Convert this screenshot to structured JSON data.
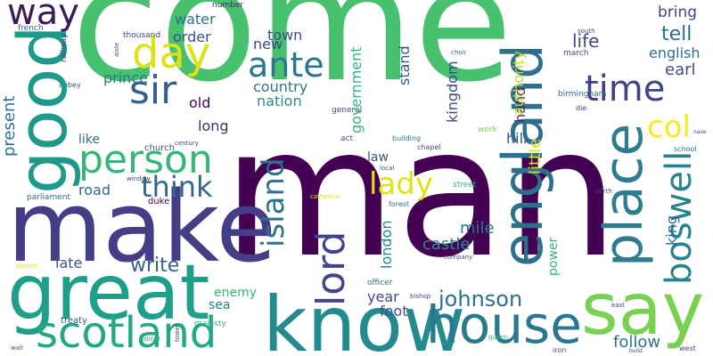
{
  "words": [
    {
      "text": "come",
      "color": "#47c16e"
    },
    {
      "text": "man",
      "color": "#440154"
    },
    {
      "text": "make",
      "color": "#433e85"
    },
    {
      "text": "great",
      "color": "#1f9e89"
    },
    {
      "text": "know",
      "color": "#238a8d"
    },
    {
      "text": "house",
      "color": "#2a788e"
    },
    {
      "text": "say",
      "color": "#7ad151"
    },
    {
      "text": "scotland",
      "color": "#22a884"
    },
    {
      "text": "good",
      "color": "#1f9a8a"
    },
    {
      "text": "way",
      "color": "#3b1c5a"
    },
    {
      "text": "day",
      "color": "#dde318"
    },
    {
      "text": "sir",
      "color": "#355f8d"
    },
    {
      "text": "ante",
      "color": "#2a768e"
    },
    {
      "text": "time",
      "color": "#404387"
    },
    {
      "text": "person",
      "color": "#35b779"
    },
    {
      "text": "think",
      "color": "#31688e"
    },
    {
      "text": "england",
      "color": "#2d708e"
    },
    {
      "text": "place",
      "color": "#2c7e8e"
    },
    {
      "text": "boswell",
      "color": "#25838e"
    },
    {
      "text": "lord",
      "color": "#414487"
    },
    {
      "text": "lady",
      "color": "#dde318"
    },
    {
      "text": "island",
      "color": "#2c738e"
    },
    {
      "text": "col",
      "color": "#fde725"
    },
    {
      "text": "johnson",
      "color": "#2d718e"
    },
    {
      "text": "write",
      "color": "#34608d"
    },
    {
      "text": "life",
      "color": "#3e4a89"
    },
    {
      "text": "tell",
      "color": "#2d708e"
    },
    {
      "text": "bring",
      "color": "#3f4788"
    },
    {
      "text": "english",
      "color": "#2f6c8e"
    },
    {
      "text": "earl",
      "color": "#3c4f8a"
    },
    {
      "text": "new",
      "color": "#3f4889"
    },
    {
      "text": "town",
      "color": "#3c508b"
    },
    {
      "text": "country",
      "color": "#2a788e"
    },
    {
      "text": "nation",
      "color": "#21918c"
    },
    {
      "text": "prince",
      "color": "#2a788e"
    },
    {
      "text": "order",
      "color": "#3b528b"
    },
    {
      "text": "water",
      "color": "#2c728e"
    },
    {
      "text": "old",
      "color": "#440154"
    },
    {
      "text": "long",
      "color": "#472c7a"
    },
    {
      "text": "like",
      "color": "#2c728e"
    },
    {
      "text": "road",
      "color": "#31688e"
    },
    {
      "text": "late",
      "color": "#39568c"
    },
    {
      "text": "present",
      "color": "#2d718e"
    },
    {
      "text": "hill",
      "color": "#3b528b"
    },
    {
      "text": "little",
      "color": "#d8e219"
    },
    {
      "text": "hand",
      "color": "#482475"
    },
    {
      "text": "authority",
      "color": "#bddf26"
    },
    {
      "text": "kingdom",
      "color": "#3f4788"
    },
    {
      "text": "stand",
      "color": "#38598c"
    },
    {
      "text": "government",
      "color": "#32b67a"
    },
    {
      "text": "law",
      "color": "#3b528b"
    },
    {
      "text": "mile",
      "color": "#2a778e"
    },
    {
      "text": "castle",
      "color": "#21918c"
    },
    {
      "text": "london",
      "color": "#24868e"
    },
    {
      "text": "power",
      "color": "#35b779"
    },
    {
      "text": "king",
      "color": "#31688e"
    },
    {
      "text": "follow",
      "color": "#2c728e"
    },
    {
      "text": "year",
      "color": "#3e4a89"
    },
    {
      "text": "foot",
      "color": "#3b528b"
    },
    {
      "text": "sea",
      "color": "#287c8e"
    },
    {
      "text": "enemy",
      "color": "#35b779"
    },
    {
      "text": "church",
      "color": "#39558c"
    },
    {
      "text": "act",
      "color": "#3b528b"
    },
    {
      "text": "thousand",
      "color": "#3e4989"
    },
    {
      "text": "number",
      "color": "#481f70"
    },
    {
      "text": "general",
      "color": "#3c4f8a"
    },
    {
      "text": "french",
      "color": "#31688e"
    },
    {
      "text": "railway",
      "color": "#3e4a89"
    },
    {
      "text": "abbey",
      "color": "#3e4a89"
    },
    {
      "text": "march",
      "color": "#3b528b"
    },
    {
      "text": "south",
      "color": "#3c4f8a"
    },
    {
      "text": "birmingham",
      "color": "#31688e"
    },
    {
      "text": "die",
      "color": "#414487"
    },
    {
      "text": "choir",
      "color": "#31688e"
    },
    {
      "text": "work",
      "color": "#7ad151"
    },
    {
      "text": "building",
      "color": "#2a788e"
    },
    {
      "text": "chapel",
      "color": "#3e4a89"
    },
    {
      "text": "street",
      "color": "#35b779"
    },
    {
      "text": "local",
      "color": "#3b528b"
    },
    {
      "text": "forest",
      "color": "#2c728e"
    },
    {
      "text": "cathedral",
      "color": "#dde318"
    },
    {
      "text": "school",
      "color": "#2a788e"
    },
    {
      "text": "north",
      "color": "#3e4a89"
    },
    {
      "text": "century",
      "color": "#3e4a89"
    },
    {
      "text": "window",
      "color": "#3e4a89"
    },
    {
      "text": "duke",
      "color": "#440154"
    },
    {
      "text": "parliament",
      "color": "#2c728e"
    },
    {
      "text": "district",
      "color": "#dde318"
    },
    {
      "text": "company",
      "color": "#3e4a89"
    },
    {
      "text": "officer",
      "color": "#2c728e"
    },
    {
      "text": "bishop",
      "color": "#3e4a89"
    },
    {
      "text": "queen",
      "color": "#35b779"
    },
    {
      "text": "treaty",
      "color": "#3b528b"
    },
    {
      "text": "majesty",
      "color": "#35b779"
    },
    {
      "text": "abbot",
      "color": "#35b779"
    },
    {
      "text": "tower",
      "color": "#3e4a89"
    },
    {
      "text": "iron",
      "color": "#3e4a89"
    },
    {
      "text": "build",
      "color": "#3e4a89"
    },
    {
      "text": "east",
      "color": "#3e4a89"
    },
    {
      "text": "west",
      "color": "#3e4a89"
    },
    {
      "text": "wall",
      "color": "#3e4a89"
    },
    {
      "text": "aisle",
      "color": "#3e4a89"
    },
    {
      "text": "nave",
      "color": "#3e4a89"
    }
  ]
}
